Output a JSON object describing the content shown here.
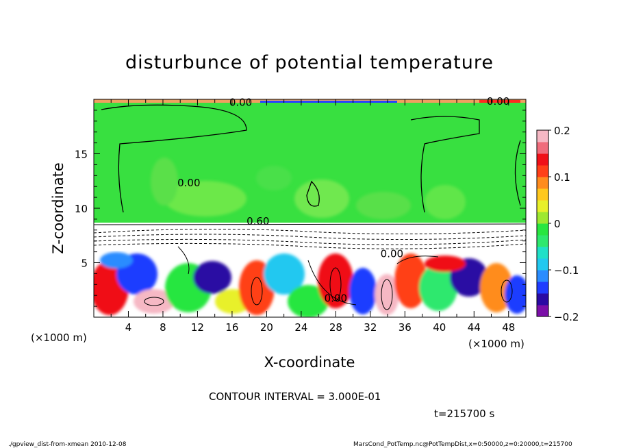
{
  "chart_data": {
    "type": "heatmap",
    "title": "disturbunce of potential temperature",
    "xlabel": "X-coordinate",
    "ylabel": "Z-coordinate",
    "x_unit_note": "(×1000 m)",
    "y_unit_note": "(×1000 m)",
    "xlim": [
      0,
      50
    ],
    "ylim": [
      0,
      20
    ],
    "x_ticks": [
      "4",
      "8",
      "12",
      "16",
      "20",
      "24",
      "28",
      "32",
      "36",
      "40",
      "44",
      "48"
    ],
    "y_ticks": [
      "5",
      "10",
      "15"
    ],
    "colorbar": {
      "range": [
        -0.2,
        0.2
      ],
      "tick_labels": [
        "0.2",
        "0.1",
        "0",
        "−0.1",
        "−0.2"
      ],
      "colors": [
        "#7b0fa8",
        "#2a0aa3",
        "#1f3cff",
        "#2a8cff",
        "#22c8f0",
        "#20e0c8",
        "#2ee86e",
        "#28e640",
        "#9ee830",
        "#e8f02a",
        "#ffc81e",
        "#ff8c1e",
        "#ff4018",
        "#f01018",
        "#f06c7c",
        "#f6b8c4"
      ]
    },
    "contour_labels": [
      "0.00",
      "0.00",
      "0.00",
      "0.60",
      "0.00",
      "0.00"
    ],
    "contour_interval_text": "CONTOUR INTERVAL = 3.000E-01",
    "time_text": "t=215700 s",
    "footer_left": "./gpview_dist-from-xmean  2010-12-08",
    "footer_right": "MarsCond_PotTemp.nc@PotTempDist,x=0:50000,z=0:20000,t=215700"
  }
}
